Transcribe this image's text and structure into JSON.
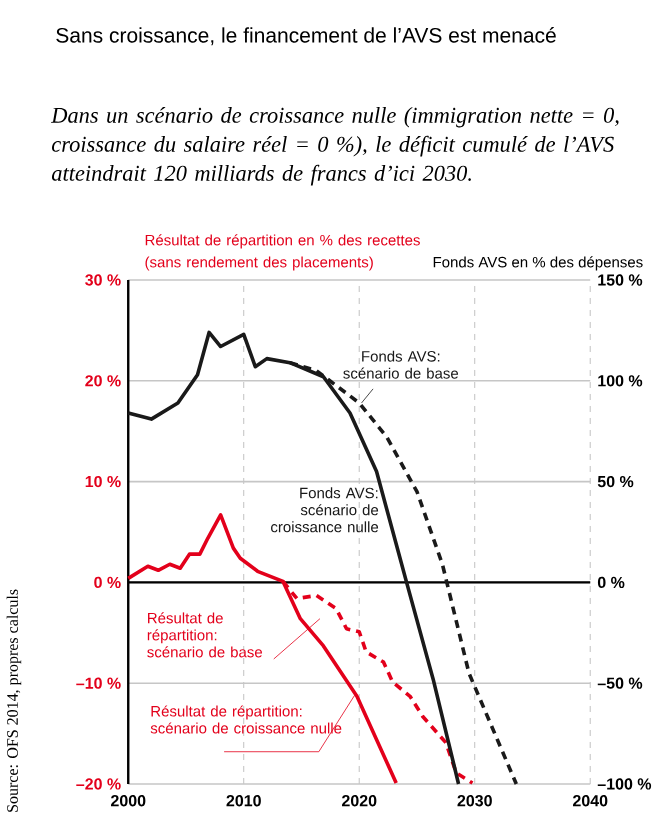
{
  "chart_data": {
    "type": "line",
    "title": "Sans croissance, le financement de l’AVS est menacé",
    "subtitle": "Dans un scénario de croissance nulle (immigration nette = 0, croissance du salaire réel = 0 %), le déficit cumulé de l’AVS atteindrait 120 milliards de francs d’ici 2030.",
    "ylabel": "Résultat de répartition en % des recettes (sans rendement des placements)",
    "y2label": "Fonds AVS en % des dépenses",
    "annotations": [
      "Source: OFS 2014, propres calculs"
    ],
    "xlim": [
      2000,
      2040
    ],
    "xticks": [
      2000,
      2010,
      2020,
      2030,
      2040
    ],
    "ylim": [
      -20,
      30
    ],
    "yticks": [
      {
        "value": -20,
        "label": "–20 %"
      },
      {
        "value": -10,
        "label": "–10 %"
      },
      {
        "value": 0,
        "label": "0 %"
      },
      {
        "value": 10,
        "label": "10 %"
      },
      {
        "value": 20,
        "label": "20 %"
      },
      {
        "value": 30,
        "label": "30 %"
      }
    ],
    "y2lim": [
      -100,
      150
    ],
    "y2ticks": [
      {
        "value": -100,
        "label": "–100 %"
      },
      {
        "value": -50,
        "label": "–50 %"
      },
      {
        "value": 0,
        "label": "0 %"
      },
      {
        "value": 50,
        "label": "50 %"
      },
      {
        "value": 100,
        "label": "100 %"
      },
      {
        "value": 150,
        "label": "150 %"
      }
    ],
    "grid": true,
    "ref_lines": [
      {
        "axis": "y",
        "value": 0,
        "color": "#000000"
      }
    ],
    "series": [
      {
        "name": "Fonds AVS: scénario de base",
        "axis": "y2",
        "color": "#1a1a1a",
        "line_style": "dashed",
        "x": [
          2014,
          2016.3,
          2020,
          2022.4,
          2025,
          2027.2,
          2029.5,
          2033.6
        ],
        "values": [
          109,
          105,
          89,
          72,
          45,
          9,
          -45,
          -100
        ]
      },
      {
        "name": "Fonds AVS: scénario de croissance nulle",
        "axis": "y2",
        "color": "#1a1a1a",
        "line_style": "solid",
        "x": [
          2000,
          2002,
          2004.3,
          2006,
          2007,
          2008,
          2010,
          2011,
          2012,
          2014,
          2016.9,
          2019.2,
          2021.5,
          2023.2,
          2024.1,
          2026.4,
          2028.6
        ],
        "values": [
          84,
          81,
          89,
          103,
          124,
          117,
          123,
          107,
          111,
          109,
          102,
          84,
          55,
          19,
          0,
          -48,
          -100
        ]
      },
      {
        "name": "Résultat de répartition: scénario de base",
        "color": "#e3001b",
        "line_style": "dashed",
        "x": [
          2013.4,
          2014.6,
          2016.3,
          2018,
          2018.9,
          2020,
          2020.6,
          2022.1,
          2022.9,
          2024.4,
          2025.5,
          2027.5,
          2028.4,
          2029.8
        ],
        "values": [
          0.1,
          -1.6,
          -1.3,
          -2.6,
          -4.6,
          -4.9,
          -6.9,
          -7.9,
          -9.9,
          -11.3,
          -13.3,
          -15.9,
          -18.9,
          -19.9
        ]
      },
      {
        "name": "Résultat de répartition: scénario de croissance nulle",
        "color": "#e3001b",
        "line_style": "solid",
        "x": [
          2000,
          2001.7,
          2002.6,
          2003.6,
          2004.5,
          2005.3,
          2006.2,
          2006.9,
          2008,
          2009.1,
          2009.7,
          2011.2,
          2013.4,
          2014.9,
          2016.9,
          2019.8,
          2023.2
        ],
        "values": [
          0.4,
          1.6,
          1.2,
          1.8,
          1.4,
          2.8,
          2.8,
          4.4,
          6.7,
          3.4,
          2.4,
          1.1,
          0.1,
          -3.6,
          -6.3,
          -11.3,
          -19.9
        ]
      }
    ]
  }
}
